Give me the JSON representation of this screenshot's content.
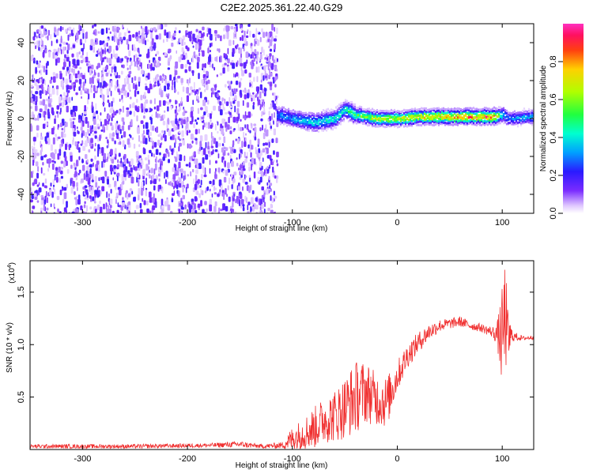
{
  "figure": {
    "title": "C2E2.2025.361.22.40.G29"
  },
  "chart_data": [
    {
      "type": "heatmap",
      "title": "C2E2.2025.361.22.40.G29",
      "xlabel": "Height of straight line (km)",
      "ylabel": "Frequency (Hz)",
      "xlim": [
        -350,
        130
      ],
      "ylim": [
        -50,
        50
      ],
      "x_ticks": [
        -300,
        -200,
        -100,
        0,
        100
      ],
      "y_ticks": [
        -40,
        -20,
        0,
        20,
        40
      ],
      "grid": false,
      "colorbar": {
        "label": "Normalized spectral amplitude",
        "range": [
          0,
          1
        ],
        "ticks": [
          "0.0",
          "0.2",
          "0.4",
          "0.6",
          "0.8"
        ],
        "colormap": "rainbow (white-purple-blue-cyan-green-yellow-red-magenta)"
      },
      "features": {
        "noise_region_x": [
          -350,
          -115
        ],
        "signal_trace": {
          "x": [
            -115,
            -100,
            -80,
            -60,
            -50,
            -40,
            -30,
            -20,
            0,
            20,
            60,
            90,
            100,
            105,
            130
          ],
          "y_hz": [
            2,
            0,
            -2,
            0,
            5,
            2,
            1,
            0,
            0,
            1,
            1,
            1,
            2,
            0,
            1
          ],
          "peak_amplitude": [
            0.3,
            0.35,
            0.4,
            0.45,
            0.45,
            0.55,
            0.6,
            0.7,
            0.7,
            0.75,
            0.85,
            0.9,
            0.4,
            0.3,
            0.4
          ]
        }
      }
    },
    {
      "type": "line",
      "xlabel": "Height of straight line (km)",
      "ylabel": "SNR (10 * v/v)",
      "scale_label": "(x10",
      "scale_exp": "4",
      "xlim": [
        -350,
        130
      ],
      "ylim": [
        0,
        1.8
      ],
      "x_ticks": [
        -300,
        -200,
        -100,
        0,
        100
      ],
      "y_ticks": [
        "0.5",
        "1.0",
        "1.5"
      ],
      "y_tick_values": [
        0.5,
        1.0,
        1.5
      ],
      "grid": false,
      "series_color": "#f03030",
      "series": [
        {
          "x": [
            -350,
            -250,
            -180,
            -150,
            -130,
            -110,
            -100,
            -90,
            -80,
            -70,
            -60,
            -50,
            -40,
            -30,
            -20,
            -10,
            0,
            10,
            20,
            30,
            40,
            50,
            60,
            70,
            80,
            90,
            95,
            100,
            103,
            105,
            110,
            120,
            130
          ],
          "y": [
            0.03,
            0.03,
            0.04,
            0.05,
            0.03,
            0.04,
            0.1,
            0.15,
            0.2,
            0.28,
            0.32,
            0.4,
            0.5,
            0.55,
            0.48,
            0.45,
            0.7,
            0.9,
            1.02,
            1.12,
            1.18,
            1.2,
            1.22,
            1.18,
            1.16,
            1.12,
            1.1,
            1.05,
            1.3,
            1.06,
            1.08,
            1.06,
            1.07
          ],
          "noise_amp": [
            0.02,
            0.02,
            0.02,
            0.03,
            0.02,
            0.03,
            0.12,
            0.15,
            0.2,
            0.22,
            0.25,
            0.3,
            0.35,
            0.3,
            0.25,
            0.25,
            0.15,
            0.12,
            0.1,
            0.08,
            0.06,
            0.05,
            0.05,
            0.04,
            0.04,
            0.05,
            0.1,
            0.5,
            0.55,
            0.3,
            0.05,
            0.02,
            0.02
          ]
        }
      ]
    }
  ]
}
